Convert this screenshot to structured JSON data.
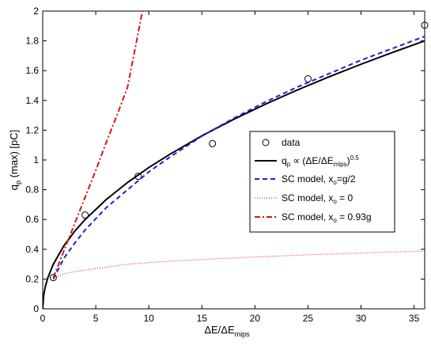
{
  "chart_data": {
    "type": "line",
    "title": "",
    "xlabel": "ΔE/ΔE_mips",
    "ylabel": "q_p (max) [pC]",
    "xlim": [
      0,
      36
    ],
    "ylim": [
      0,
      2
    ],
    "xticks": [
      0,
      5,
      10,
      15,
      20,
      25,
      30,
      35
    ],
    "xtick_labels": [
      "0",
      "5",
      "10",
      "15",
      "20",
      "25",
      "30",
      "35"
    ],
    "yticks": [
      0,
      0.2,
      0.4,
      0.6,
      0.8,
      1,
      1.2,
      1.4,
      1.6,
      1.8,
      2
    ],
    "ytick_labels": [
      "0",
      "0.2",
      "0.4",
      "0.6",
      "0.8",
      "1",
      "1.2",
      "1.4",
      "1.6",
      "1.8",
      "2"
    ],
    "grid": false,
    "legend_position": "right",
    "series": [
      {
        "name": "data",
        "style": "markers",
        "marker": "circle",
        "color": "#000000",
        "x": [
          1,
          4,
          9,
          16,
          25,
          36
        ],
        "y": [
          0.21,
          0.63,
          0.89,
          1.11,
          1.545,
          1.905
        ]
      },
      {
        "name": "q_p ∝ (ΔE/ΔE_mips)^0.5",
        "style": "solid",
        "color": "#000000",
        "x": [
          0,
          0.1,
          0.25,
          0.5,
          1,
          2,
          3,
          4,
          6,
          8,
          10,
          12,
          15,
          18,
          21,
          24,
          27,
          30,
          33,
          36
        ],
        "y": [
          0,
          0.095,
          0.15,
          0.212,
          0.3,
          0.424,
          0.52,
          0.6,
          0.735,
          0.849,
          0.949,
          1.039,
          1.162,
          1.273,
          1.375,
          1.47,
          1.559,
          1.643,
          1.723,
          1.8
        ]
      },
      {
        "name": "SC model, x_o=g/2",
        "style": "dashed",
        "color": "#1f1fe0",
        "x": [
          1,
          2,
          3,
          4,
          6,
          8,
          10,
          12,
          15,
          18,
          21,
          24,
          27,
          30,
          33,
          36
        ],
        "y": [
          0.2,
          0.34,
          0.44,
          0.53,
          0.68,
          0.8,
          0.92,
          1.02,
          1.16,
          1.28,
          1.39,
          1.49,
          1.58,
          1.67,
          1.75,
          1.83
        ]
      },
      {
        "name": "SC model, x_o = 0",
        "style": "dotted",
        "color": "#e03030",
        "x": [
          1,
          2,
          3,
          5,
          8,
          12,
          16,
          20,
          24,
          28,
          32,
          36
        ],
        "y": [
          0.21,
          0.235,
          0.25,
          0.27,
          0.3,
          0.32,
          0.335,
          0.348,
          0.36,
          0.37,
          0.38,
          0.388
        ]
      },
      {
        "name": "SC model, x_o = 0.93g",
        "style": "dashdot",
        "color": "#dd1111",
        "x": [
          1,
          2,
          3,
          4,
          5,
          6,
          7,
          8,
          9.4
        ],
        "y": [
          0.21,
          0.39,
          0.57,
          0.75,
          0.93,
          1.12,
          1.3,
          1.49,
          2
        ]
      }
    ]
  },
  "legend": {
    "items": [
      {
        "main": "data",
        "sub": "",
        "tail": "",
        "sup": ""
      },
      {
        "main": "q",
        "sub": "p",
        "tail": " ∝ (ΔE/ΔE",
        "sub2": "mips",
        "close": ")",
        "sup": "0.5"
      },
      {
        "main": "SC model, x",
        "sub": "o",
        "tail": "=g/2"
      },
      {
        "main": "SC model, x",
        "sub": "o",
        "tail": " = 0"
      },
      {
        "main": "SC model, x",
        "sub": "o",
        "tail": " = 0.93g"
      }
    ]
  },
  "axes_text": {
    "xlabel_main": "ΔE/ΔE",
    "xlabel_sub": "mips",
    "ylabel_main": "q",
    "ylabel_sub": "p",
    "ylabel_tail": " (max) [pC]"
  }
}
